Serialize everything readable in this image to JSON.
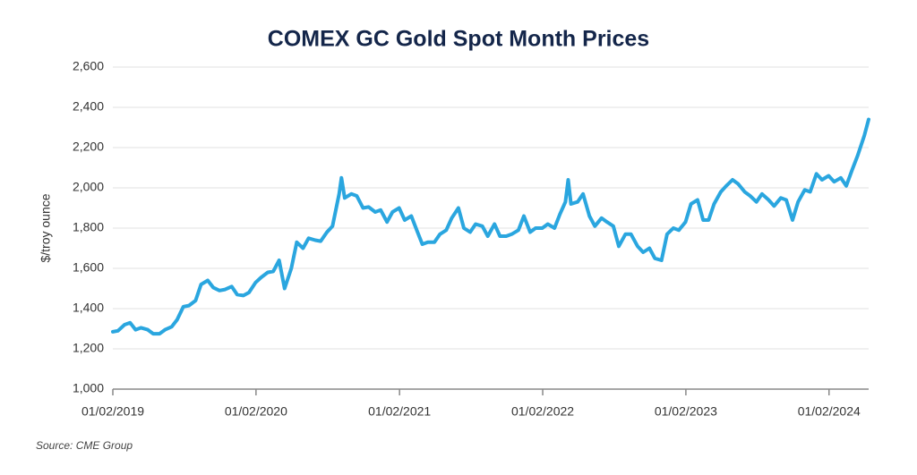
{
  "chart_data": {
    "type": "line",
    "title": "COMEX GC Gold Spot Month Prices",
    "y_label": "$/troy ounce",
    "source": "Source: CME Group",
    "color": "#2aa6df",
    "grid": true,
    "x": [
      "01/02/2019",
      "01/15/2019",
      "02/01/2019",
      "02/15/2019",
      "03/01/2019",
      "03/15/2019",
      "04/01/2019",
      "04/15/2019",
      "05/01/2019",
      "05/15/2019",
      "06/01/2019",
      "06/15/2019",
      "07/01/2019",
      "07/15/2019",
      "08/01/2019",
      "08/15/2019",
      "09/01/2019",
      "09/15/2019",
      "10/01/2019",
      "10/15/2019",
      "11/01/2019",
      "11/15/2019",
      "12/01/2019",
      "12/15/2019",
      "01/01/2020",
      "01/15/2020",
      "02/01/2020",
      "02/15/2020",
      "03/01/2020",
      "03/15/2020",
      "04/01/2020",
      "04/15/2020",
      "05/01/2020",
      "05/15/2020",
      "06/01/2020",
      "06/15/2020",
      "07/01/2020",
      "07/15/2020",
      "08/01/2020",
      "08/07/2020",
      "08/15/2020",
      "09/01/2020",
      "09/15/2020",
      "10/01/2020",
      "10/15/2020",
      "11/01/2020",
      "11/15/2020",
      "12/01/2020",
      "12/15/2020",
      "01/01/2021",
      "01/15/2021",
      "02/01/2021",
      "02/15/2021",
      "03/01/2021",
      "03/15/2021",
      "04/01/2021",
      "04/15/2021",
      "05/01/2021",
      "05/15/2021",
      "06/01/2021",
      "06/15/2021",
      "07/01/2021",
      "07/15/2021",
      "08/01/2021",
      "08/15/2021",
      "09/01/2021",
      "09/15/2021",
      "10/01/2021",
      "10/15/2021",
      "11/01/2021",
      "11/15/2021",
      "12/01/2021",
      "12/15/2021",
      "01/01/2022",
      "01/15/2022",
      "02/01/2022",
      "02/15/2022",
      "03/01/2022",
      "03/08/2022",
      "03/15/2022",
      "04/01/2022",
      "04/15/2022",
      "05/01/2022",
      "05/15/2022",
      "06/01/2022",
      "06/15/2022",
      "07/01/2022",
      "07/15/2022",
      "08/01/2022",
      "08/15/2022",
      "09/01/2022",
      "09/15/2022",
      "10/01/2022",
      "10/15/2022",
      "11/01/2022",
      "11/15/2022",
      "12/01/2022",
      "12/15/2022",
      "01/01/2023",
      "01/15/2023",
      "02/01/2023",
      "02/15/2023",
      "03/01/2023",
      "03/15/2023",
      "04/01/2023",
      "04/15/2023",
      "05/01/2023",
      "05/15/2023",
      "06/01/2023",
      "06/15/2023",
      "07/01/2023",
      "07/15/2023",
      "08/01/2023",
      "08/15/2023",
      "09/01/2023",
      "09/15/2023",
      "10/01/2023",
      "10/15/2023",
      "11/01/2023",
      "11/15/2023",
      "12/01/2023",
      "12/15/2023",
      "01/01/2024",
      "01/15/2024",
      "02/01/2024",
      "02/15/2024",
      "03/01/2024",
      "03/15/2024",
      "04/01/2024",
      "04/12/2024"
    ],
    "values": [
      1285,
      1290,
      1320,
      1330,
      1295,
      1305,
      1295,
      1275,
      1275,
      1295,
      1310,
      1345,
      1410,
      1415,
      1440,
      1520,
      1540,
      1505,
      1490,
      1495,
      1510,
      1470,
      1465,
      1480,
      1530,
      1555,
      1580,
      1585,
      1640,
      1500,
      1600,
      1730,
      1700,
      1750,
      1740,
      1735,
      1780,
      1810,
      1970,
      2050,
      1950,
      1970,
      1960,
      1900,
      1905,
      1880,
      1890,
      1830,
      1880,
      1900,
      1840,
      1860,
      1790,
      1720,
      1730,
      1730,
      1770,
      1790,
      1850,
      1900,
      1800,
      1780,
      1820,
      1810,
      1760,
      1820,
      1760,
      1760,
      1770,
      1790,
      1860,
      1780,
      1800,
      1800,
      1820,
      1800,
      1870,
      1930,
      2040,
      1920,
      1930,
      1970,
      1860,
      1810,
      1850,
      1830,
      1810,
      1710,
      1770,
      1770,
      1710,
      1680,
      1700,
      1650,
      1640,
      1770,
      1800,
      1790,
      1830,
      1920,
      1940,
      1840,
      1840,
      1920,
      1980,
      2010,
      2040,
      2020,
      1980,
      1960,
      1930,
      1970,
      1940,
      1910,
      1950,
      1940,
      1840,
      1930,
      1990,
      1980,
      2070,
      2040,
      2060,
      2030,
      2050,
      2010,
      2090,
      2160,
      2260,
      2340
    ],
    "xlim": [
      "01/02/2019",
      "04/12/2024"
    ],
    "xticks": [
      "01/02/2019",
      "01/02/2020",
      "01/02/2021",
      "01/02/2022",
      "01/02/2023",
      "01/02/2024"
    ],
    "ylim": [
      1000,
      2600
    ],
    "yticks": [
      {
        "value": 1000,
        "label": "1,000"
      },
      {
        "value": 1200,
        "label": "1,200"
      },
      {
        "value": 1400,
        "label": "1,400"
      },
      {
        "value": 1600,
        "label": "1,600"
      },
      {
        "value": 1800,
        "label": "1,800"
      },
      {
        "value": 2000,
        "label": "2,000"
      },
      {
        "value": 2200,
        "label": "2,200"
      },
      {
        "value": 2400,
        "label": "2,400"
      },
      {
        "value": 2600,
        "label": "2,600"
      }
    ]
  }
}
